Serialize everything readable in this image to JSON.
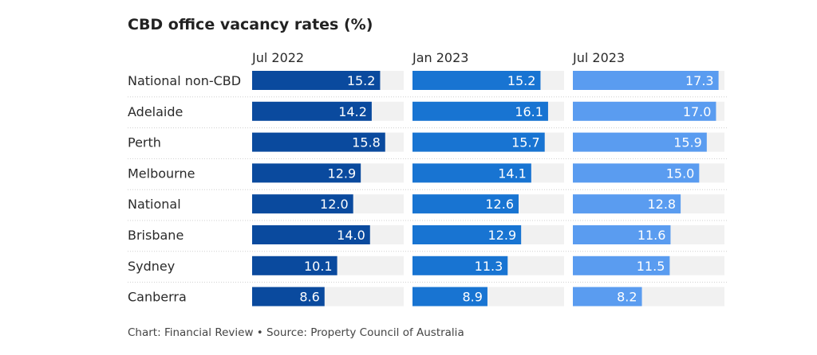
{
  "chart_data": {
    "type": "bar",
    "title": "CBD office vacancy rates (%)",
    "categories": [
      "National non-CBD",
      "Adelaide",
      "Perth",
      "Melbourne",
      "National",
      "Brisbane",
      "Sydney",
      "Canberra"
    ],
    "series": [
      {
        "name": "Jul 2022",
        "color": "#0a4a9e",
        "values": [
          15.2,
          14.2,
          15.8,
          12.9,
          12.0,
          14.0,
          10.1,
          8.6
        ]
      },
      {
        "name": "Jan 2023",
        "color": "#1874d2",
        "values": [
          15.2,
          16.1,
          15.7,
          14.1,
          12.6,
          12.9,
          11.3,
          8.9
        ]
      },
      {
        "name": "Jul 2023",
        "color": "#5a9cf0",
        "values": [
          17.3,
          17.0,
          15.9,
          15.0,
          12.8,
          11.6,
          11.5,
          8.2
        ]
      }
    ],
    "xlim": [
      0,
      18
    ],
    "orientation": "horizontal",
    "source": "Chart: Financial Review • Source: Property Council of Australia"
  },
  "colors": {
    "track": "#f1f1f1",
    "gridline": "#cfcfcf",
    "value_text": "#ffffff"
  }
}
